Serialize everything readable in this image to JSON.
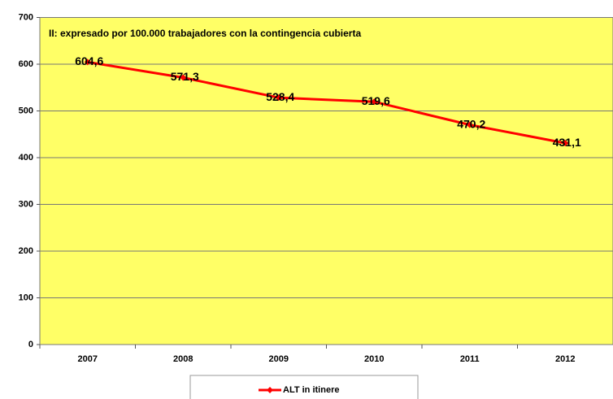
{
  "chart_data": {
    "type": "line",
    "title": "II: expresado por 100.000 trabajadores con la contingencia cubierta",
    "categories": [
      "2007",
      "2008",
      "2009",
      "2010",
      "2011",
      "2012"
    ],
    "series": [
      {
        "name": "ALT in itinere",
        "color": "#ff0000",
        "values": [
          604.6,
          571.3,
          528.4,
          519.6,
          470.2,
          431.1
        ],
        "value_labels": [
          "604,6",
          "571,3",
          "528,4",
          "519,6",
          "470,2",
          "431,1"
        ]
      }
    ],
    "ylim": [
      0,
      700
    ],
    "yticks": [
      0,
      100,
      200,
      300,
      400,
      500,
      600,
      700
    ],
    "grid": true,
    "legend": "bottom",
    "background": "#ffff66"
  }
}
